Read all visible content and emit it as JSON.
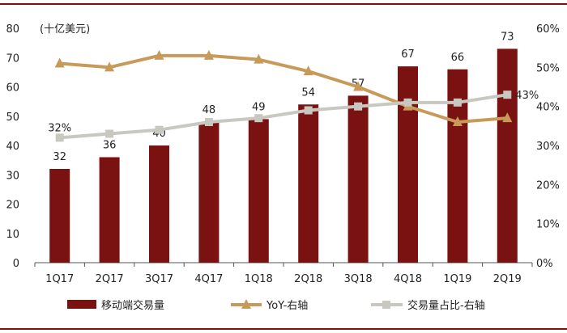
{
  "chart_data": {
    "type": "bar+line",
    "unit_label": "(十亿美元)",
    "categories": [
      "1Q17",
      "2Q17",
      "3Q17",
      "4Q17",
      "1Q18",
      "2Q18",
      "3Q18",
      "4Q18",
      "1Q19",
      "2Q19"
    ],
    "series": [
      {
        "name": "移动端交易量",
        "type": "bar",
        "axis": "left",
        "color": "#7a1212",
        "values": [
          32,
          36,
          40,
          48,
          49,
          54,
          57,
          67,
          66,
          73
        ]
      },
      {
        "name": "YoY-右轴",
        "type": "line",
        "axis": "right",
        "color": "#c89a5a",
        "marker": "triangle",
        "values": [
          51,
          50,
          53,
          53,
          52,
          49,
          45,
          40,
          36,
          37
        ]
      },
      {
        "name": "交易量占比-右轴",
        "type": "line",
        "axis": "right",
        "color": "#c8c8c0",
        "marker": "square",
        "values": [
          32,
          33,
          34,
          36,
          37,
          39,
          40,
          41,
          41,
          43
        ]
      }
    ],
    "bar_data_labels": [
      "32",
      "36",
      "40",
      "48",
      "49",
      "54",
      "57",
      "67",
      "66",
      "73"
    ],
    "share_line_labels": [
      {
        "index": 0,
        "text": "32%"
      },
      {
        "index": 9,
        "text": "43%"
      }
    ],
    "left_axis": {
      "min": 0,
      "max": 80,
      "step": 10,
      "ticks": [
        "0",
        "10",
        "20",
        "30",
        "40",
        "50",
        "60",
        "70",
        "80"
      ]
    },
    "right_axis": {
      "min": 0,
      "max": 60,
      "step": 10,
      "ticks": [
        "0%",
        "10%",
        "20%",
        "30%",
        "40%",
        "50%",
        "60%"
      ]
    },
    "legend_position": "bottom",
    "grid": false
  }
}
